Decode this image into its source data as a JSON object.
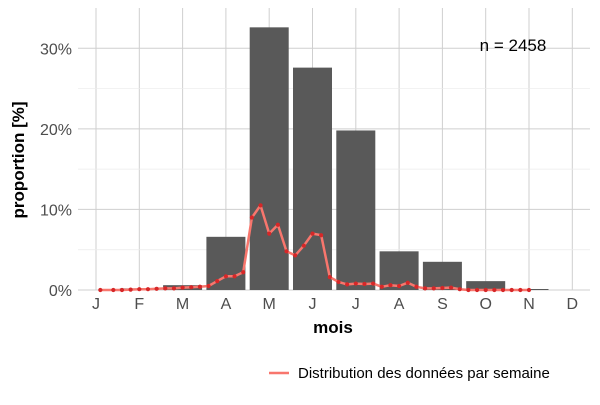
{
  "chart_data": {
    "type": "bar",
    "xlabel": "mois",
    "ylabel": "proportion [%]",
    "annotation": "n = 2458",
    "ylim": [
      0,
      35
    ],
    "y_ticks": [
      0,
      10,
      20,
      30
    ],
    "y_tick_labels": [
      "0%",
      "10%",
      "20%",
      "30%"
    ],
    "categories": [
      "J",
      "F",
      "M",
      "A",
      "M",
      "J",
      "J",
      "A",
      "S",
      "O",
      "N",
      "D"
    ],
    "values": [
      0.0,
      0.2,
      0.6,
      6.6,
      32.6,
      27.6,
      19.8,
      4.8,
      3.5,
      1.1,
      0.1,
      0.0
    ],
    "bar_color": "#595959",
    "grid": true,
    "legend_position": "bottom-right",
    "series": [
      {
        "name": "Distribution des données par semaine",
        "type": "line",
        "color": "#f8766d",
        "point_color": "#d62728",
        "x": [
          1.1,
          1.4,
          1.6,
          1.8,
          2.0,
          2.2,
          2.4,
          2.6,
          2.8,
          3.0,
          3.2,
          3.4,
          3.6,
          3.8,
          4.0,
          4.2,
          4.4,
          4.6,
          4.8,
          5.0,
          5.2,
          5.4,
          5.6,
          5.8,
          6.0,
          6.2,
          6.4,
          6.6,
          6.8,
          7.0,
          7.2,
          7.4,
          7.6,
          7.8,
          8.0,
          8.2,
          8.4,
          8.6,
          8.8,
          9.0,
          9.2,
          9.4,
          9.6,
          9.8,
          10.0,
          10.2,
          10.4,
          10.6,
          10.8,
          11.0
        ],
        "y": [
          0.0,
          0.0,
          0.0,
          0.05,
          0.1,
          0.1,
          0.15,
          0.2,
          0.2,
          0.3,
          0.35,
          0.4,
          0.5,
          1.1,
          1.7,
          1.7,
          2.2,
          9.0,
          10.5,
          7.0,
          8.1,
          4.8,
          4.3,
          5.5,
          7.0,
          6.8,
          1.6,
          1.0,
          0.7,
          0.8,
          0.75,
          0.8,
          0.4,
          0.6,
          0.5,
          0.9,
          0.4,
          0.2,
          0.2,
          0.25,
          0.3,
          0.1,
          0.0,
          0.0,
          0.0,
          0.0,
          0.0,
          0.0,
          0.0,
          0.0
        ]
      }
    ]
  }
}
